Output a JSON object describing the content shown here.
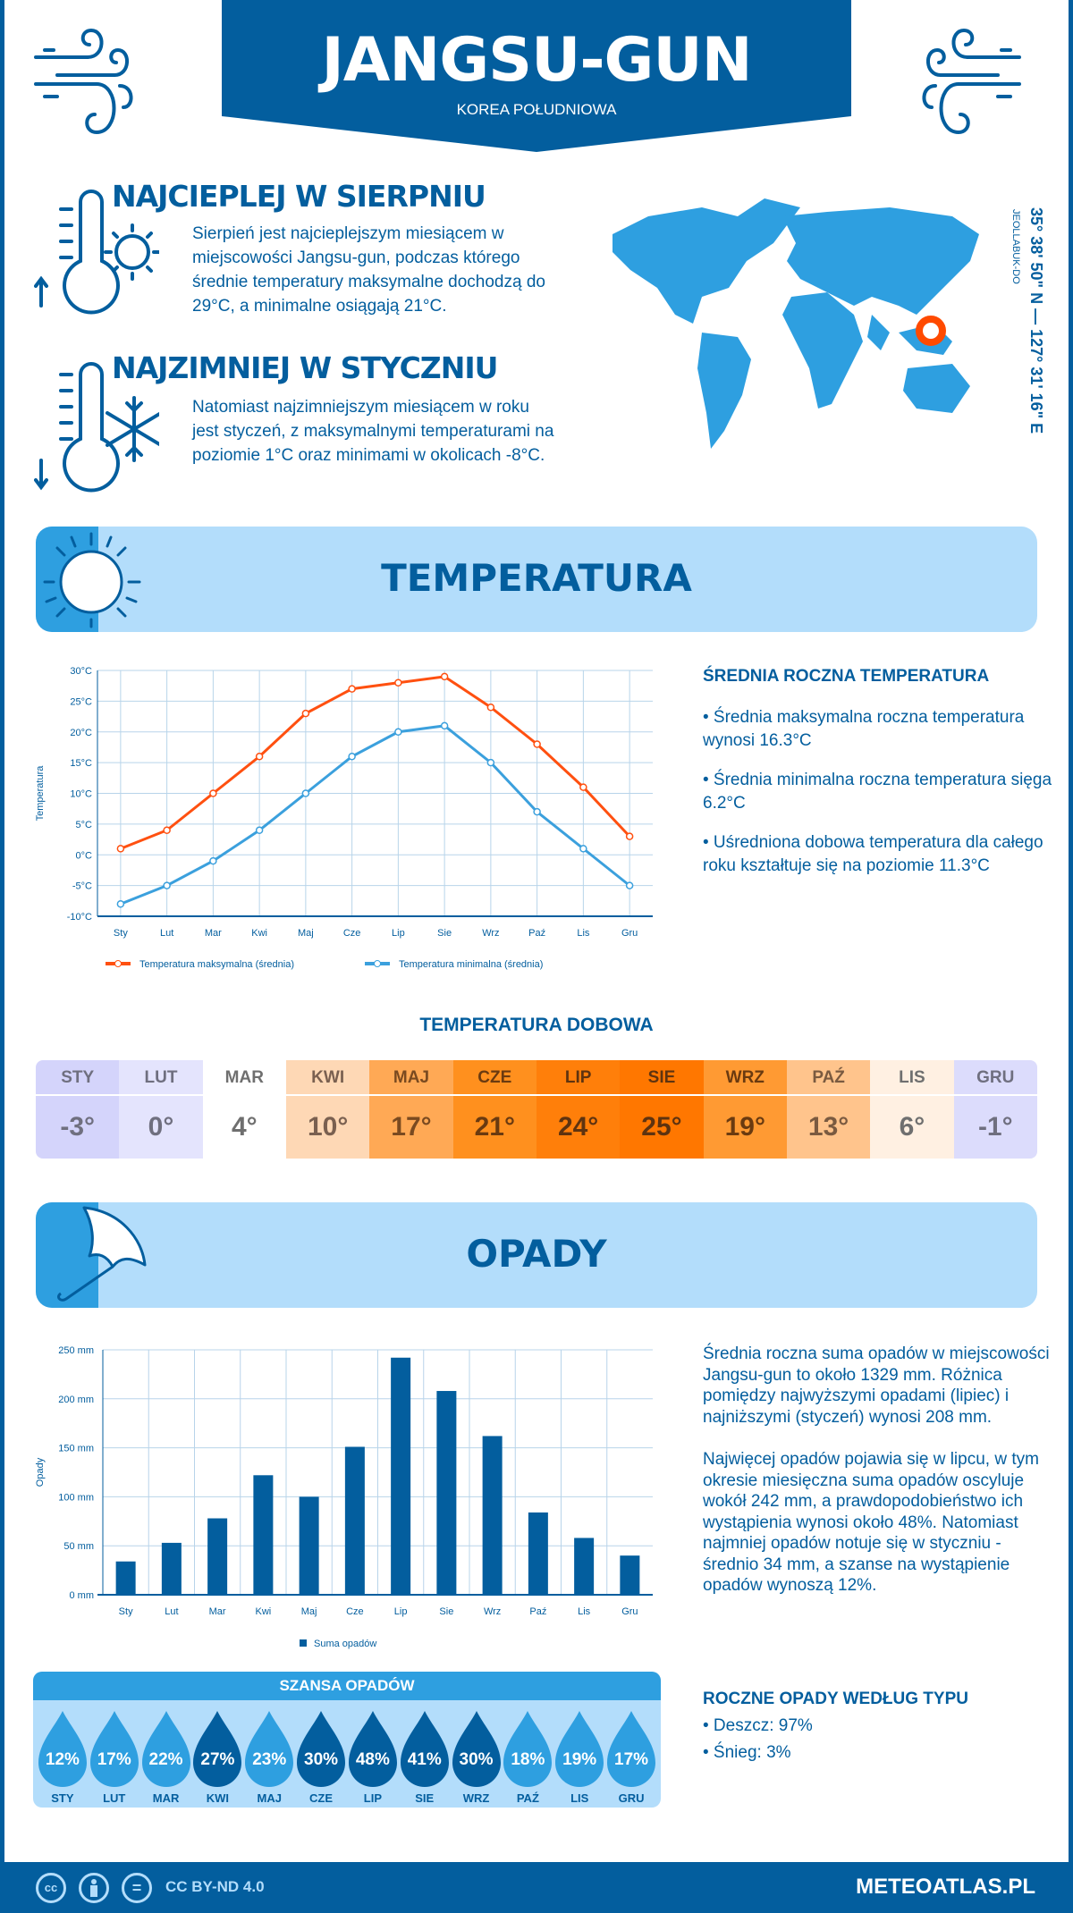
{
  "header": {
    "title": "JANGSU-GUN",
    "subtitle": "KOREA POŁUDNIOWA"
  },
  "warmest": {
    "heading": "NAJCIEPLEJ W SIERPNIU",
    "text": "Sierpień jest najcieplejszym miesiącem w miejscowości Jangsu-gun, podczas którego średnie temperatury maksymalne dochodzą do 29°C, a minimalne osiągają 21°C."
  },
  "coldest": {
    "heading": "NAJZIMNIEJ W STYCZNIU",
    "text": "Natomiast najzimniejszym miesiącem w roku jest styczeń, z maksymalnymi temperaturami na poziomie 1°C oraz minimami w okolicach -8°C."
  },
  "location": {
    "coords": "35° 38' 50\" N — 127° 31' 16\" E",
    "region": "JEOLLABUK-DO"
  },
  "temperature": {
    "banner": "TEMPERATURA",
    "summary_heading": "ŚREDNIA ROCZNA TEMPERATURA",
    "bullets": [
      "• Średnia maksymalna roczna temperatura wynosi 16.3°C",
      "• Średnia minimalna roczna temperatura sięga 6.2°C",
      "• Uśredniona dobowa temperatura dla całego roku kształtuje się na poziomie 11.3°C"
    ],
    "daily_heading": "TEMPERATURA DOBOWA",
    "daily": [
      {
        "m": "STY",
        "v": "-3°",
        "bg": "#d4d4fb",
        "fg": "#6f6f7f"
      },
      {
        "m": "LUT",
        "v": "0°",
        "bg": "#e4e4fd",
        "fg": "#6f6f7f"
      },
      {
        "m": "MAR",
        "v": "4°",
        "bg": "#ffffff",
        "fg": "#6f6f6f"
      },
      {
        "m": "KWI",
        "v": "10°",
        "bg": "#fed8b5",
        "fg": "#7a6050"
      },
      {
        "m": "MAJ",
        "v": "17°",
        "bg": "#ffa955",
        "fg": "#7a4a20"
      },
      {
        "m": "CZE",
        "v": "21°",
        "bg": "#ff901e",
        "fg": "#6a3a10"
      },
      {
        "m": "LIP",
        "v": "24°",
        "bg": "#ff7f0a",
        "fg": "#5e3310"
      },
      {
        "m": "SIE",
        "v": "25°",
        "bg": "#ff7700",
        "fg": "#5e3310"
      },
      {
        "m": "WRZ",
        "v": "19°",
        "bg": "#ff9a33",
        "fg": "#6a3a10"
      },
      {
        "m": "PAŹ",
        "v": "13°",
        "bg": "#ffc48c",
        "fg": "#7a5a40"
      },
      {
        "m": "LIS",
        "v": "6°",
        "bg": "#fff0e2",
        "fg": "#6f6f6f"
      },
      {
        "m": "GRU",
        "v": "-1°",
        "bg": "#dcdcfc",
        "fg": "#6f6f7f"
      }
    ]
  },
  "precipitation": {
    "banner": "OPADY",
    "text1": "Średnia roczna suma opadów w miejscowości Jangsu-gun to około 1329 mm. Różnica pomiędzy najwyższymi opadami (lipiec) i najniższymi (styczeń) wynosi 208 mm.",
    "text2": "Najwięcej opadów pojawia się w lipcu, w tym okresie miesięczna suma opadów oscyluje wokół 242 mm, a prawdopodobieństwo ich wystąpienia wynosi około 48%. Natomiast najmniej opadów notuje się w styczniu - średnio 34 mm, a szanse na wystąpienie opadów wynoszą 12%.",
    "chance_heading": "SZANSA OPADÓW",
    "chance": [
      {
        "m": "STY",
        "v": "12%",
        "dark": false
      },
      {
        "m": "LUT",
        "v": "17%",
        "dark": false
      },
      {
        "m": "MAR",
        "v": "22%",
        "dark": false
      },
      {
        "m": "KWI",
        "v": "27%",
        "dark": true
      },
      {
        "m": "MAJ",
        "v": "23%",
        "dark": false
      },
      {
        "m": "CZE",
        "v": "30%",
        "dark": true
      },
      {
        "m": "LIP",
        "v": "48%",
        "dark": true
      },
      {
        "m": "SIE",
        "v": "41%",
        "dark": true
      },
      {
        "m": "WRZ",
        "v": "30%",
        "dark": true
      },
      {
        "m": "PAŹ",
        "v": "18%",
        "dark": false
      },
      {
        "m": "LIS",
        "v": "19%",
        "dark": false
      },
      {
        "m": "GRU",
        "v": "17%",
        "dark": false
      }
    ],
    "type_heading": "ROCZNE OPADY WEDŁUG TYPU",
    "types": [
      "• Deszcz: 97%",
      "• Śnieg: 3%"
    ]
  },
  "footer": {
    "license": "CC BY-ND 4.0",
    "site": "METEOATLAS.PL",
    "cc": "cc",
    "eq": "="
  },
  "colors": {
    "primary": "#035e9e",
    "light": "#b3ddfb",
    "accent": "#2e9fe0",
    "max_line": "#ff5010",
    "min_line": "#3ba0dd",
    "marker": "#ff4a00"
  },
  "chart_data": [
    {
      "type": "line",
      "categories": [
        "Sty",
        "Lut",
        "Mar",
        "Kwi",
        "Maj",
        "Cze",
        "Lip",
        "Sie",
        "Wrz",
        "Paź",
        "Lis",
        "Gru"
      ],
      "ylabel": "Temperatura",
      "ylim": [
        -10,
        30
      ],
      "yticks": [
        "-10°C",
        "-5°C",
        "0°C",
        "5°C",
        "10°C",
        "15°C",
        "20°C",
        "25°C",
        "30°C"
      ],
      "grid": true,
      "legend": "bottom",
      "series": [
        {
          "name": "Temperatura maksymalna (średnia)",
          "values": [
            1,
            4,
            10,
            16,
            23,
            27,
            28,
            29,
            24,
            18,
            11,
            3
          ],
          "color": "#ff5010"
        },
        {
          "name": "Temperatura minimalna (średnia)",
          "values": [
            -8,
            -5,
            -1,
            4,
            10,
            16,
            20,
            21,
            15,
            7,
            1,
            -5
          ],
          "color": "#3ba0dd"
        }
      ]
    },
    {
      "type": "bar",
      "categories": [
        "Sty",
        "Lut",
        "Mar",
        "Kwi",
        "Maj",
        "Cze",
        "Lip",
        "Sie",
        "Wrz",
        "Paź",
        "Lis",
        "Gru"
      ],
      "ylabel": "Opady",
      "ylim": [
        0,
        250
      ],
      "yticks": [
        "0 mm",
        "50 mm",
        "100 mm",
        "150 mm",
        "200 mm",
        "250 mm"
      ],
      "grid": true,
      "legend": "bottom",
      "series": [
        {
          "name": "Suma opadów",
          "values": [
            34,
            53,
            78,
            122,
            100,
            151,
            242,
            208,
            162,
            84,
            58,
            40
          ],
          "color": "#035e9e"
        }
      ]
    }
  ]
}
